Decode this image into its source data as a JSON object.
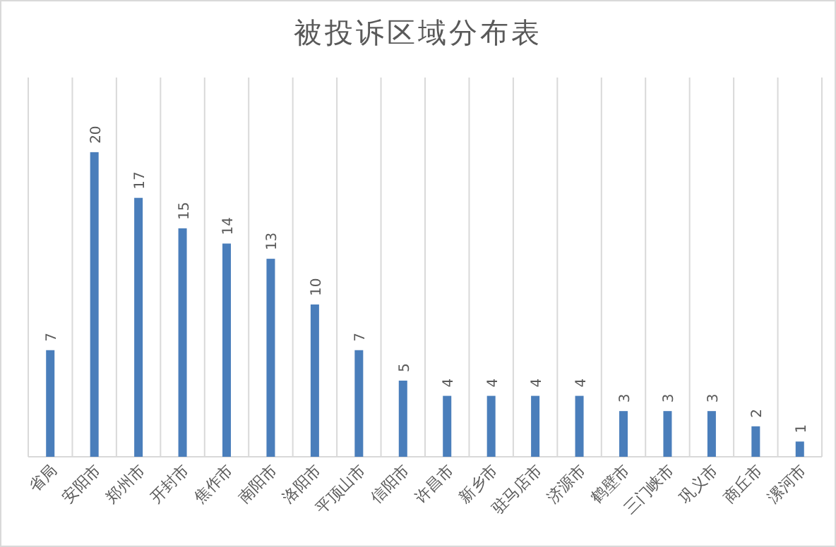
{
  "chart_data": {
    "type": "bar",
    "title": "被投诉区域分布表",
    "categories": [
      "省局",
      "安阳市",
      "郑州市",
      "开封市",
      "焦作市",
      "南阳市",
      "洛阳市",
      "平顶山市",
      "信阳市",
      "许昌市",
      "新乡市",
      "驻马店市",
      "济源市",
      "鹤壁市",
      "三门峡市",
      "巩义市",
      "商丘市",
      "漯河市"
    ],
    "values": [
      7,
      20,
      17,
      15,
      14,
      13,
      10,
      7,
      5,
      4,
      4,
      4,
      4,
      3,
      3,
      3,
      2,
      1
    ],
    "color": "#4a7ebb",
    "data_labels": true,
    "grid": "x"
  }
}
